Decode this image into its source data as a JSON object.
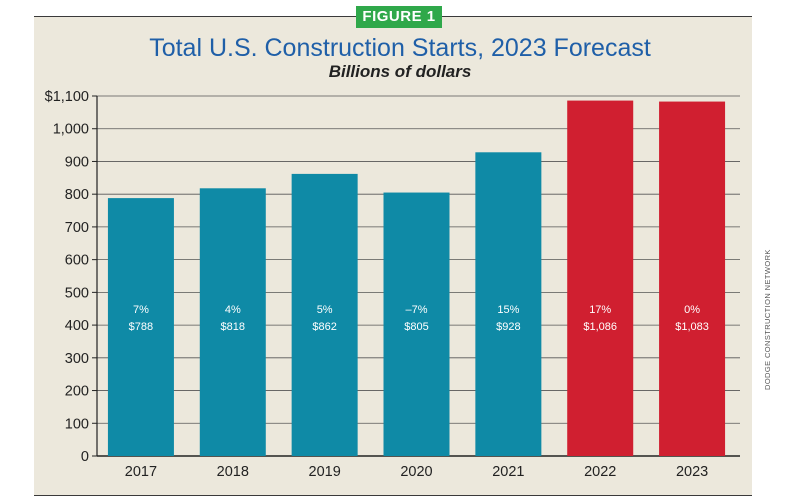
{
  "figure_label": "FIGURE 1",
  "source": "DODGE CONSTRUCTION NETWORK",
  "colors": {
    "actual": "#0f8aa6",
    "forecast": "#d01f30",
    "panel": "#ece8dc",
    "title": "#1f5fa8"
  },
  "chart_data": {
    "type": "bar",
    "title": "Total U.S. Construction Starts, 2023 Forecast",
    "subtitle": "Billions of dollars",
    "xlabel": "",
    "ylabel": "",
    "ylim": [
      0,
      1100
    ],
    "yticks": [
      0,
      100,
      200,
      300,
      400,
      500,
      600,
      700,
      800,
      900,
      1000,
      1100
    ],
    "ytick_labels": [
      "0",
      "100",
      "200",
      "300",
      "400",
      "500",
      "600",
      "700",
      "800",
      "900",
      "1,000",
      "$1,100"
    ],
    "grid": true,
    "categories": [
      "2017",
      "2018",
      "2019",
      "2020",
      "2021",
      "2022",
      "2023"
    ],
    "values": [
      788,
      818,
      862,
      805,
      928,
      1086,
      1083
    ],
    "value_labels": [
      "$788",
      "$818",
      "$862",
      "$805",
      "$928",
      "$1,086",
      "$1,083"
    ],
    "change_labels": [
      "7%",
      "4%",
      "5%",
      "–7%",
      "15%",
      "17%",
      "0%"
    ],
    "bar_colors": [
      "#0f8aa6",
      "#0f8aa6",
      "#0f8aa6",
      "#0f8aa6",
      "#0f8aa6",
      "#d01f30",
      "#d01f30"
    ]
  }
}
